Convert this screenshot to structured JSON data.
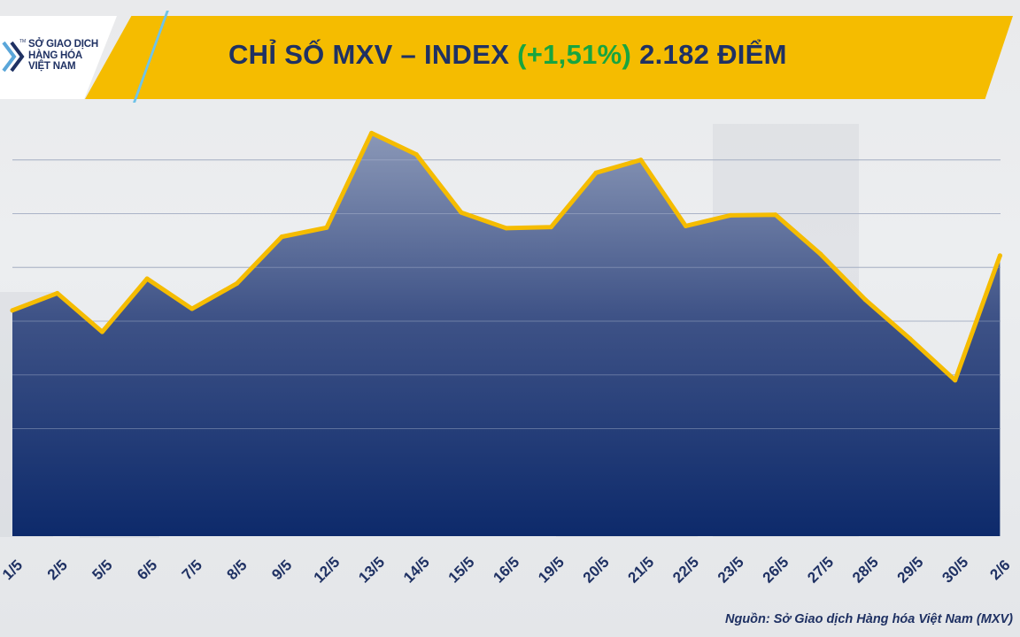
{
  "header": {
    "title_prefix": "CHỈ SỐ MXV – INDEX ",
    "title_change": "(+1,51%)",
    "title_suffix": " 2.182 ĐIỂM",
    "change_color": "#18a53f",
    "banner_color": "#f5bc00",
    "text_color": "#1f3163"
  },
  "logo": {
    "line1": "SỞ GIAO DỊCH",
    "line2": "HÀNG HÓA",
    "line3": "VIỆT NAM",
    "tm": "TM",
    "icon": "double-chevron-right-icon"
  },
  "source": "Nguồn: Sở Giao dịch Hàng hóa Việt Nam (MXV)",
  "chart_data": {
    "type": "area",
    "title": "CHỈ SỐ MXV – INDEX (+1,51%) 2.182 ĐIỂM",
    "xlabel": "",
    "ylabel": "",
    "categories": [
      "1/5",
      "2/5",
      "5/5",
      "6/5",
      "7/5",
      "8/5",
      "9/5",
      "12/5",
      "13/5",
      "14/5",
      "15/5",
      "16/5",
      "19/5",
      "20/5",
      "21/5",
      "22/5",
      "23/5",
      "26/5",
      "27/5",
      "28/5",
      "29/5",
      "30/5",
      "2/6"
    ],
    "series": [
      {
        "name": "",
        "values": [
          2080,
          2112,
          2040,
          2139,
          2083,
          2130,
          2217,
          2234,
          2410,
          2370,
          2262,
          2233,
          2235,
          2336,
          2360,
          2237,
          2257,
          2258,
          2185,
          2100,
          2027,
          1950,
          2182
        ]
      }
    ],
    "ylim": [
      1660,
      2460
    ],
    "y_gridlines": [
      1860,
      1960,
      2060,
      2160,
      2260,
      2360
    ],
    "y_tick_labels_shown": false,
    "grid": true,
    "line_color": "#f5bc00",
    "fill_top_color": "#8593b4",
    "fill_bottom_color": "#0d2a6b",
    "legend": "none"
  }
}
